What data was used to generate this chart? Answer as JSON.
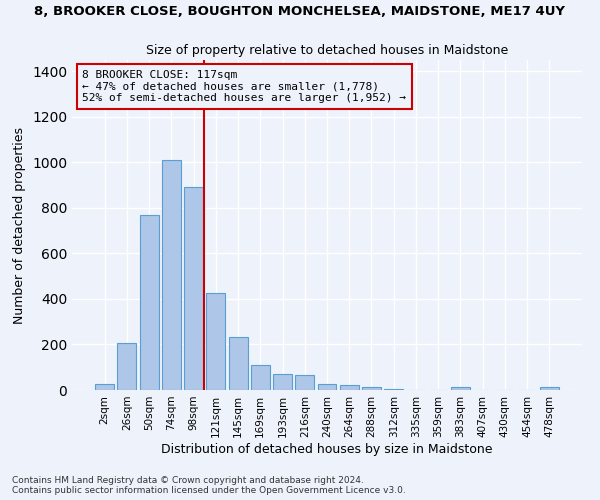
{
  "title1": "8, BROOKER CLOSE, BOUGHTON MONCHELSEA, MAIDSTONE, ME17 4UY",
  "title2": "Size of property relative to detached houses in Maidstone",
  "xlabel": "Distribution of detached houses by size in Maidstone",
  "ylabel": "Number of detached properties",
  "categories": [
    "2sqm",
    "26sqm",
    "50sqm",
    "74sqm",
    "98sqm",
    "121sqm",
    "145sqm",
    "169sqm",
    "193sqm",
    "216sqm",
    "240sqm",
    "264sqm",
    "288sqm",
    "312sqm",
    "335sqm",
    "359sqm",
    "383sqm",
    "407sqm",
    "430sqm",
    "454sqm",
    "478sqm"
  ],
  "bar_heights": [
    25,
    205,
    770,
    1010,
    890,
    425,
    235,
    110,
    70,
    68,
    25,
    20,
    12,
    5,
    0,
    0,
    15,
    0,
    0,
    0,
    15
  ],
  "bar_color": "#aec6e8",
  "bar_edge_color": "#5a9fd4",
  "property_label": "8 BROOKER CLOSE: 117sqm",
  "annotation_line1": "← 47% of detached houses are smaller (1,778)",
  "annotation_line2": "52% of semi-detached houses are larger (1,952) →",
  "vline_color": "#cc0000",
  "vline_x": 4.45,
  "ylim": [
    0,
    1450
  ],
  "background_color": "#eef3fb",
  "grid_color": "#ffffff",
  "footnote1": "Contains HM Land Registry data © Crown copyright and database right 2024.",
  "footnote2": "Contains public sector information licensed under the Open Government Licence v3.0."
}
